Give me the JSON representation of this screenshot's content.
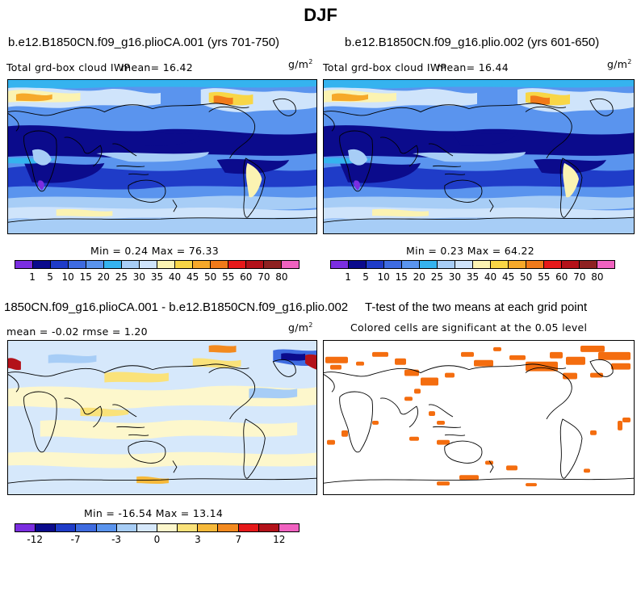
{
  "page": {
    "title": "DJF"
  },
  "panels": {
    "p1": {
      "case": "b.e12.B1850CN.f09_g16.plioCA.001 (yrs 701-750)",
      "variable": "Total grd-box cloud  IWP",
      "mean": "mean=  16.42",
      "units": "g/m",
      "units_sup": "2",
      "stats": "Min =   0.24 Max =  76.33"
    },
    "p2": {
      "case": "b.e12.B1850CN.f09_g16.plio.002 (yrs 601-650)",
      "variable": "Total grd-box cloud  IWP",
      "mean": "mean=  16.44",
      "units": "g/m",
      "units_sup": "2",
      "stats": "Min =   0.23 Max =  64.22"
    },
    "p3": {
      "case": "1850CN.f09_g16.plioCA.001 - b.e12.B1850CN.f09_g16.plio.002",
      "mean_rmse": "mean =  -0.02     rmse =    1.20",
      "units": "g/m",
      "units_sup": "2",
      "stats": "Min = -16.54 Max =  13.14"
    },
    "p4": {
      "title": "T-test of the two means at each grid point",
      "subtitle": "Colored cells are significant at the 0.05 level"
    }
  },
  "colorbars": {
    "abs": {
      "colors": [
        "#7b2ee0",
        "#0b0b8c",
        "#1f3cc8",
        "#3e6be0",
        "#5a94ee",
        "#35b3ef",
        "#a7cdf6",
        "#cfe4fb",
        "#fbf3b2",
        "#f8d646",
        "#f6a92a",
        "#f17a1a",
        "#e6191a",
        "#b3121a",
        "#8e2121",
        "#f062c0"
      ],
      "labels": [
        "1",
        "5",
        "10",
        "15",
        "20",
        "25",
        "30",
        "35",
        "40",
        "45",
        "50",
        "55",
        "60",
        "70",
        "80"
      ]
    },
    "diff": {
      "colors": [
        "#7b2ee0",
        "#0b0b8c",
        "#1f3cc8",
        "#3e6be0",
        "#5a94ee",
        "#a7cdf6",
        "#d6e8fb",
        "#fdf7cc",
        "#fae27a",
        "#f6b93a",
        "#f38a1f",
        "#e6191a",
        "#b3121a",
        "#f062c0"
      ],
      "labels": [
        "-12",
        "-7",
        "-3",
        "0",
        "3",
        "7",
        "12"
      ]
    }
  },
  "colors": {
    "significance": "#f46d0f",
    "land_outline": "#000000"
  }
}
